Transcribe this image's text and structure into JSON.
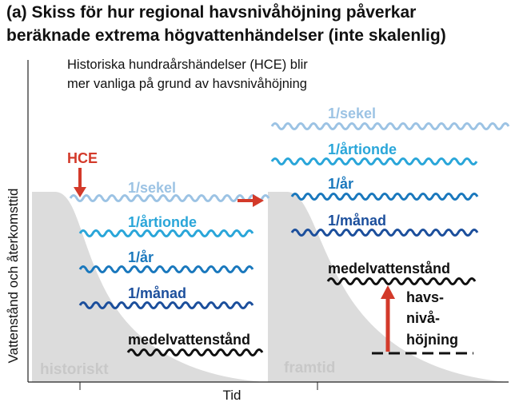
{
  "header": {
    "title_lines": [
      "(a) Skiss för hur regional havsnivåhöjning påverkar",
      "beräknade extrema högvattenhändelser (inte skalenlig)"
    ],
    "subtitle_lines": [
      "Historiska hundraårshändelser (HCE) blir",
      "mer vanliga på grund av havsnivåhöjning"
    ]
  },
  "axes": {
    "y_label": "Vattenstånd och återkomsttid",
    "x_label": "Tid"
  },
  "left_panel": {
    "marker": "HCE",
    "levels": [
      "1/sekel",
      "1/årtionde",
      "1/år",
      "1/månad",
      "medelvattenstånd"
    ],
    "label": "historiskt"
  },
  "right_panel": {
    "levels": [
      "1/sekel",
      "1/årtionde",
      "1/år",
      "1/månad",
      "medelvattenstånd"
    ],
    "rise_lines": [
      "havs-",
      "nivå-",
      "höjning"
    ],
    "label": "framtid"
  }
}
